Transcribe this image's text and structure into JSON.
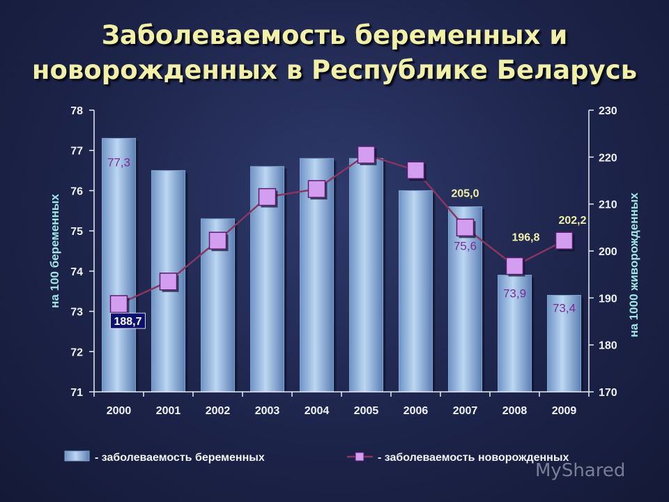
{
  "title_lines": [
    "Заболеваемость беременных и",
    "новорожденных в Республике Беларусь"
  ],
  "watermark": "MyShared",
  "chart_data": {
    "type": "bar",
    "categories": [
      "2000",
      "2001",
      "2002",
      "2003",
      "2004",
      "2005",
      "2006",
      "2007",
      "2008",
      "2009"
    ],
    "series": [
      {
        "name": "- заболеваемость беременных",
        "kind": "bar",
        "axis": "left",
        "values": [
          77.3,
          76.5,
          75.3,
          76.6,
          76.8,
          76.8,
          76.0,
          75.6,
          73.9,
          73.4
        ],
        "labels": [
          "77,3",
          "",
          "",
          "",
          "",
          "",
          "",
          "75,6",
          "73,9",
          "73,4"
        ]
      },
      {
        "name": "- заболеваемость новорожденных",
        "kind": "line",
        "axis": "right",
        "values": [
          188.7,
          193.5,
          202.2,
          211.5,
          213.2,
          220.5,
          217.2,
          205.0,
          196.8,
          202.2
        ],
        "labels": [
          "188,7",
          "",
          "",
          "",
          "",
          "",
          "",
          "205,0",
          "196,8",
          "202,2"
        ]
      }
    ],
    "y_left": {
      "label": "на 100 беременных",
      "min": 71,
      "max": 78,
      "ticks": [
        "71",
        "72",
        "73",
        "74",
        "75",
        "76",
        "77",
        "78"
      ]
    },
    "y_right": {
      "label": "на 1000 живорожденных",
      "min": 170,
      "max": 230,
      "ticks": [
        "170",
        "180",
        "190",
        "200",
        "210",
        "220",
        "230"
      ]
    },
    "legend_position": "bottom",
    "grid": false,
    "colors": {
      "bar": "#8fb4dc",
      "line": "#8a3560",
      "marker": "#d39ef0",
      "label_purple": "#7a2a9a",
      "label_yellow": "#f2efa8"
    }
  }
}
